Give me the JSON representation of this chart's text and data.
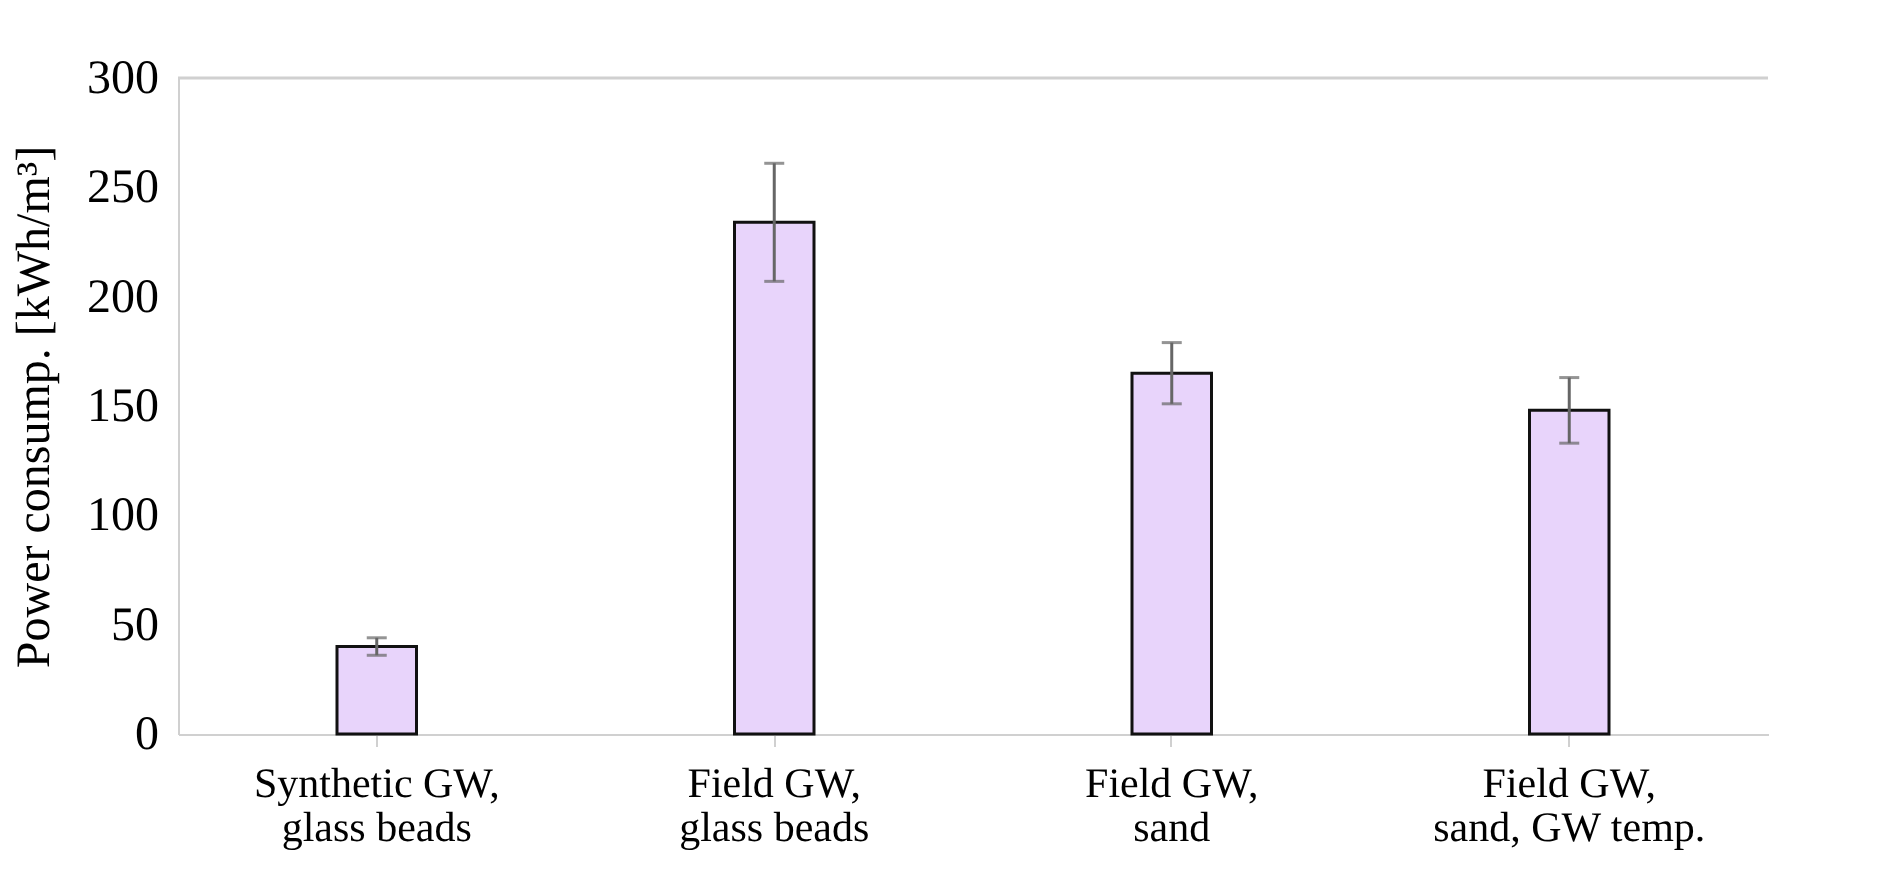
{
  "chart_data": {
    "type": "bar",
    "ylabel": "Power consump. [kWh/m³]",
    "categories": [
      "Synthetic GW, glass beads",
      "Field GW, glass beads",
      "Field GW, sand",
      "Field GW, sand, GW temp."
    ],
    "values": [
      40,
      234,
      165,
      148
    ],
    "errors": [
      4,
      27,
      14,
      15
    ],
    "color": "#e8d4fb",
    "ylim": [
      0,
      300
    ],
    "yticks": [
      0,
      50,
      100,
      150,
      200,
      250,
      300
    ],
    "grid": false
  }
}
